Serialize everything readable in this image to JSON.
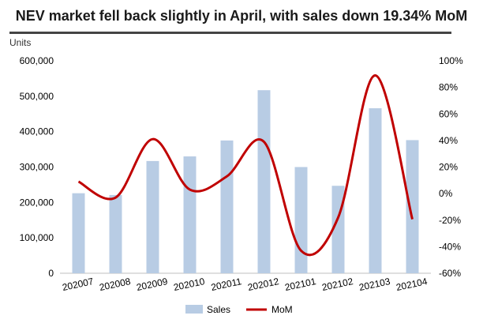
{
  "chart_data": {
    "type": "bar+line",
    "title": "NEV market fell back slightly in April, with sales down 19.34% MoM",
    "categories": [
      "202007",
      "202008",
      "202009",
      "202010",
      "202011",
      "202012",
      "202101",
      "202102",
      "202103",
      "202104"
    ],
    "y_unit_label": "Units",
    "series": [
      {
        "name": "Sales",
        "type": "bar",
        "axis": "left",
        "color": "#b8cce4",
        "values": [
          226000,
          221000,
          317000,
          330000,
          375000,
          517000,
          300000,
          247000,
          466000,
          376000
        ]
      },
      {
        "name": "MoM",
        "type": "line",
        "axis": "right",
        "color": "#c00000",
        "values": [
          9,
          -3,
          41,
          3,
          13,
          39,
          -43,
          -18,
          89,
          -19.34
        ]
      }
    ],
    "ylim_left": [
      0,
      600000
    ],
    "yticks_left": [
      "0",
      "100,000",
      "200,000",
      "300,000",
      "400,000",
      "500,000",
      "600,000"
    ],
    "ylim_right": [
      -60,
      100
    ],
    "yticks_right": [
      "-60%",
      "-40%",
      "-20%",
      "0%",
      "20%",
      "40%",
      "60%",
      "80%",
      "100%"
    ],
    "legend_position": "bottom",
    "grid": false
  }
}
